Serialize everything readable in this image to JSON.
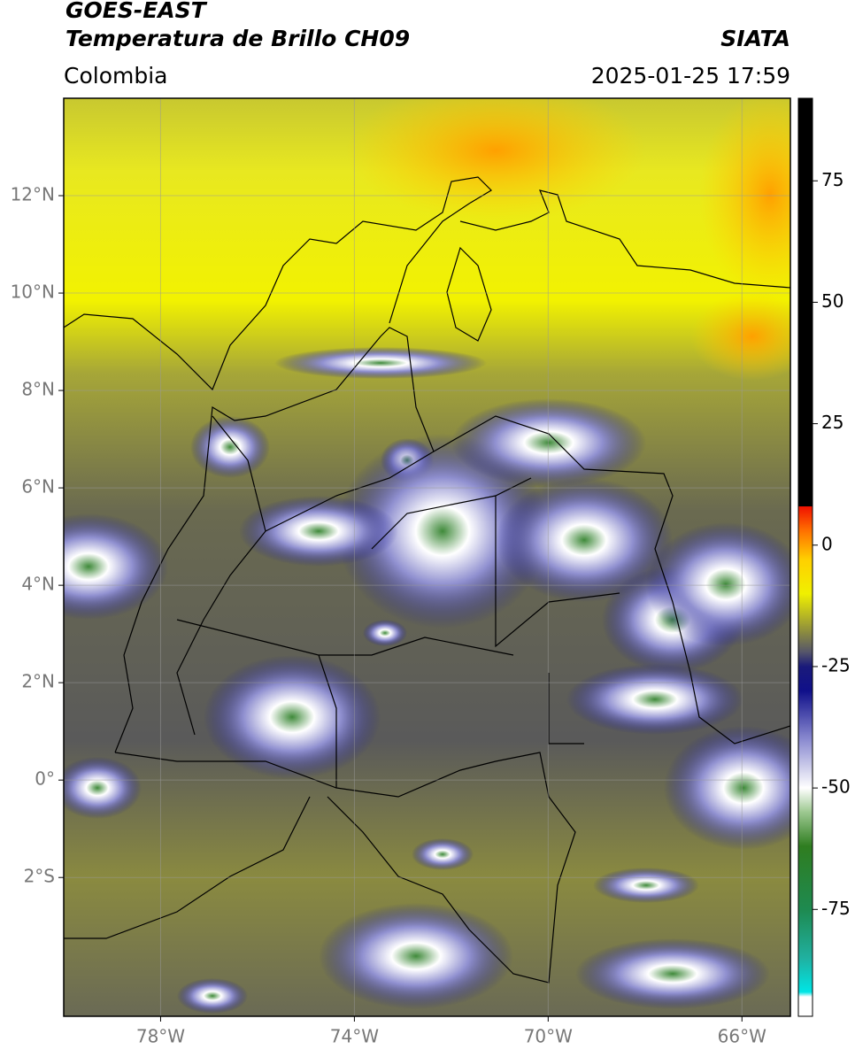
{
  "header": {
    "title_line1": "GOES-EAST",
    "title_line2": "Temperatura de Brillo CH09",
    "source": "SIATA",
    "region": "Colombia",
    "datetime": "2025-01-25 17:59"
  },
  "map": {
    "lon_range": [
      -80,
      -65
    ],
    "lat_range": [
      -4.85,
      14
    ],
    "lon_ticks": [
      {
        "value": -78,
        "label": "78°W"
      },
      {
        "value": -74,
        "label": "74°W"
      },
      {
        "value": -70,
        "label": "70°W"
      },
      {
        "value": -66,
        "label": "66°W"
      }
    ],
    "lat_ticks": [
      {
        "value": 12,
        "label": "12°N"
      },
      {
        "value": 10,
        "label": "10°N"
      },
      {
        "value": 8,
        "label": "8°N"
      },
      {
        "value": 6,
        "label": "6°N"
      },
      {
        "value": 4,
        "label": "4°N"
      },
      {
        "value": 2,
        "label": "2°N"
      },
      {
        "value": 0,
        "label": "0°"
      },
      {
        "value": -2,
        "label": "2°S"
      }
    ],
    "grid": true
  },
  "colorbar": {
    "range": [
      -97,
      92
    ],
    "ticks": [
      75,
      50,
      25,
      0,
      -25,
      -50,
      -75
    ],
    "stops": [
      {
        "value": -97,
        "color": "#ffffff"
      },
      {
        "value": -93,
        "color": "#ffffff"
      },
      {
        "value": -92,
        "color": "#00e5e5"
      },
      {
        "value": -85,
        "color": "#20b0a0"
      },
      {
        "value": -75,
        "color": "#1e8a50"
      },
      {
        "value": -62,
        "color": "#2f7d20"
      },
      {
        "value": -55,
        "color": "#9cc890"
      },
      {
        "value": -50,
        "color": "#ffffff"
      },
      {
        "value": -40,
        "color": "#8a8ad0"
      },
      {
        "value": -30,
        "color": "#10108a"
      },
      {
        "value": -25,
        "color": "#1a1a7a"
      },
      {
        "value": -22,
        "color": "#55556a"
      },
      {
        "value": -18,
        "color": "#8a8a40"
      },
      {
        "value": -10,
        "color": "#f0f000"
      },
      {
        "value": -3,
        "color": "#ffd000"
      },
      {
        "value": 3,
        "color": "#ff7000"
      },
      {
        "value": 8,
        "color": "#f01000"
      },
      {
        "value": 8.01,
        "color": "#000000"
      },
      {
        "value": 92,
        "color": "#000000"
      }
    ]
  }
}
